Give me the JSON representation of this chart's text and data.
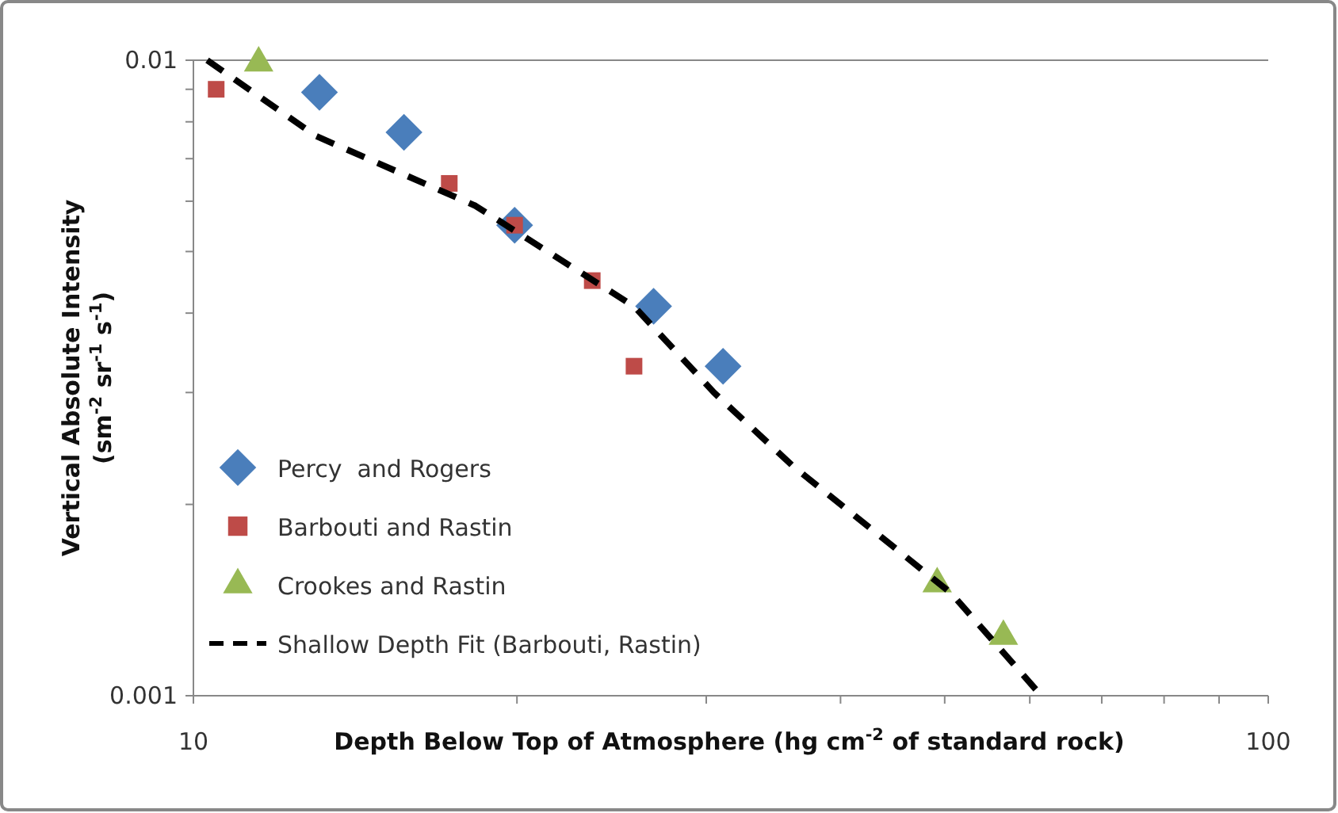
{
  "chart_data": {
    "type": "scatter",
    "xlabel": "Depth Below Top of Atmosphere (hg cm$^{-2}$ of standard rock)",
    "ylabel": "Vertical Absolute Intensity (sm$^{-2}$ sr$^{-1}$ s$^{-1}$)",
    "log": "xy",
    "xlim": [
      10,
      100
    ],
    "ylim": [
      0.001,
      0.01
    ],
    "xticks": [
      10,
      {
        "value": 20,
        "label": null
      },
      {
        "value": 30,
        "label": null
      },
      {
        "value": 40,
        "label": null
      },
      {
        "value": 50,
        "label": null
      },
      {
        "value": 60,
        "label": null
      },
      {
        "value": 70,
        "label": null
      },
      {
        "value": 80,
        "label": null
      },
      {
        "value": 90,
        "label": null
      },
      100
    ],
    "yticks": [
      0.001,
      {
        "value": 0.002,
        "label": null
      },
      {
        "value": 0.003,
        "label": null
      },
      {
        "value": 0.004,
        "label": null
      },
      {
        "value": 0.005,
        "label": null
      },
      {
        "value": 0.006,
        "label": null
      },
      {
        "value": 0.007,
        "label": null
      },
      {
        "value": 0.008,
        "label": null
      },
      {
        "value": 0.009,
        "label": null
      },
      0.01
    ],
    "grid": false,
    "legend": "bottom left",
    "series": [
      {
        "name": "Percy  and Rogers",
        "color": "#4a7ebb",
        "marker": "diamond",
        "x": [
          13.1,
          15.7,
          19.9,
          26.8,
          31.1
        ],
        "values": [
          0.0089,
          0.0077,
          0.0055,
          0.0041,
          0.0033
        ]
      },
      {
        "name": "Barbouti and Rastin",
        "color": "#be4b48",
        "marker": "square",
        "x": [
          10.5,
          17.3,
          19.9,
          23.5,
          25.7
        ],
        "values": [
          0.009,
          0.0064,
          0.0055,
          0.0045,
          0.0033
        ]
      },
      {
        "name": "Crookes and Rastin",
        "color": "#98b954",
        "marker": "triangle",
        "x": [
          11.5,
          49.2,
          56.7
        ],
        "values": [
          0.0099,
          0.0015,
          0.00124
        ]
      },
      {
        "name": "Shallow Depth Fit (Barbouti, Rastin)",
        "type": "line",
        "color": "#000000",
        "marker": "none",
        "line_style": "dashed",
        "x": [
          10.3,
          13,
          18.3,
          25.7,
          30.5,
          36.1,
          50.7,
          61.5
        ],
        "values": [
          0.01,
          0.0076,
          0.0059,
          0.0041,
          0.003,
          0.0023,
          0.00145,
          0.001
        ]
      }
    ]
  }
}
